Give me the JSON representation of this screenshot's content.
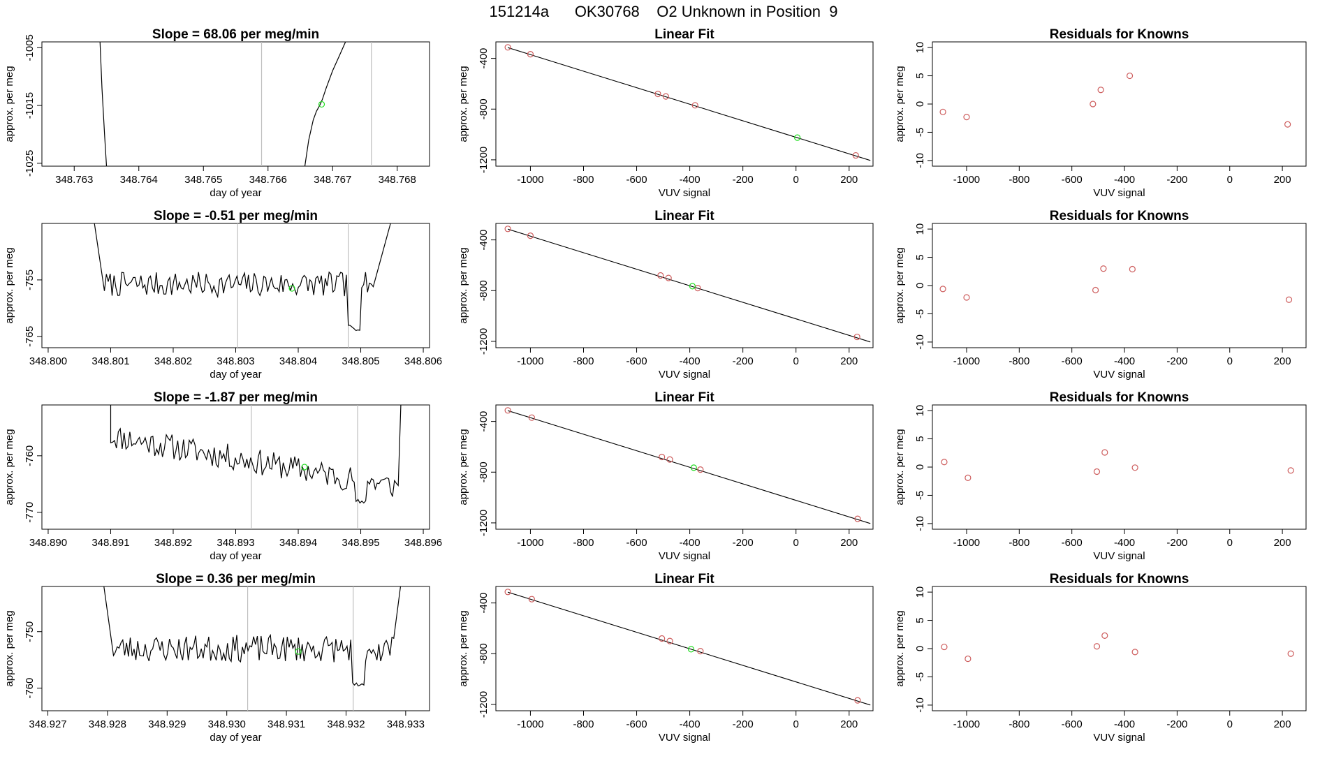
{
  "page_title": "151214a      OK30768    O2 Unknown in Position  9",
  "colors": {
    "known": "#cd5c5c",
    "unknown": "#22dd22",
    "line": "#000000",
    "vline": "#bfbfbf"
  },
  "chart_data": [
    {
      "id": "r1-trace",
      "type": "line",
      "title": "Slope =  68.06  per meg/min",
      "xlabel": "day of year",
      "ylabel": "approx. per meg",
      "xlim": [
        348.7625,
        348.7685
      ],
      "ylim": [
        -1025.5,
        -1004
      ],
      "xticks": [
        348.763,
        348.764,
        348.765,
        348.766,
        348.767,
        348.768
      ],
      "xtick_labels": [
        "348.763",
        "348.764",
        "348.765",
        "348.766",
        "348.767",
        "348.768"
      ],
      "yticks": [
        -1005,
        -1015,
        -1025
      ],
      "ytick_labels": [
        "-1005",
        "-1015",
        "-1025"
      ],
      "vlines": [
        348.7659,
        348.7676
      ],
      "segments": [
        [
          [
            348.7634,
            -1004
          ],
          [
            348.76343,
            -1012
          ],
          [
            348.76347,
            -1020
          ],
          [
            348.7635,
            -1025.5
          ]
        ],
        [
          [
            348.76657,
            -1025.5
          ],
          [
            348.76663,
            -1021
          ],
          [
            348.7667,
            -1017.5
          ],
          [
            348.76675,
            -1016
          ],
          [
            348.7668,
            -1015
          ],
          [
            348.76684,
            -1014
          ],
          [
            348.7669,
            -1012
          ],
          [
            348.767,
            -1009
          ],
          [
            348.7671,
            -1006.5
          ],
          [
            348.7672,
            -1004
          ]
        ]
      ],
      "unknown_point": [
        348.76683,
        -1014.8
      ]
    },
    {
      "id": "r1-fit",
      "type": "scatter",
      "title": "Linear Fit",
      "xlabel": "VUV signal",
      "ylabel": "approx. per meg",
      "xlim": [
        -1130,
        290
      ],
      "ylim": [
        -1250,
        -270
      ],
      "xticks": [
        -1000,
        -800,
        -600,
        -400,
        -200,
        0,
        200
      ],
      "xtick_labels": [
        "-1000",
        "-800",
        "-600",
        "-400",
        "-200",
        "0",
        "200"
      ],
      "yticks": [
        -400,
        -800,
        -1200
      ],
      "ytick_labels": [
        "-400",
        "-800",
        "-1200"
      ],
      "fit_line": [
        [
          -1085,
          -315
        ],
        [
          280,
          -1205
        ]
      ],
      "knowns": [
        [
          -1085,
          -313
        ],
        [
          -1000,
          -367
        ],
        [
          -520,
          -680
        ],
        [
          -490,
          -700
        ],
        [
          -380,
          -770
        ],
        [
          225,
          -1165
        ]
      ],
      "unknowns": [
        [
          5,
          -1025
        ]
      ]
    },
    {
      "id": "r1-resid",
      "type": "scatter",
      "title": "Residuals for Knowns",
      "xlabel": "VUV signal",
      "ylabel": "approx. per meg",
      "xlim": [
        -1130,
        290
      ],
      "ylim": [
        -11,
        11
      ],
      "xticks": [
        -1000,
        -800,
        -600,
        -400,
        -200,
        0,
        200
      ],
      "xtick_labels": [
        "-1000",
        "-800",
        "-600",
        "-400",
        "-200",
        "0",
        "200"
      ],
      "yticks": [
        10,
        5,
        0,
        -5,
        -10
      ],
      "ytick_labels": [
        "10",
        "5",
        "0",
        "-5",
        "-10"
      ],
      "knowns": [
        [
          -1090,
          -1.4
        ],
        [
          -1000,
          -2.3
        ],
        [
          -520,
          0
        ],
        [
          -490,
          2.5
        ],
        [
          -380,
          5.0
        ],
        [
          220,
          -3.6
        ]
      ]
    },
    {
      "id": "r2-trace",
      "type": "line",
      "title": "Slope =  -0.51  per meg/min",
      "xlabel": "day of year",
      "ylabel": "approx. per meg",
      "xlim": [
        348.7999,
        348.8061
      ],
      "ylim": [
        -767,
        -745
      ],
      "xticks": [
        348.8,
        348.801,
        348.802,
        348.803,
        348.804,
        348.805,
        348.806
      ],
      "xtick_labels": [
        "348.800",
        "348.801",
        "348.802",
        "348.803",
        "348.804",
        "348.805",
        "348.806"
      ],
      "yticks": [
        -755,
        -765
      ],
      "ytick_labels": [
        "-755",
        "-765"
      ],
      "vlines": [
        348.80303,
        348.8048
      ],
      "noise": {
        "x0": 348.8009,
        "x1": 348.8052,
        "n": 140,
        "mean": -755.8,
        "amp": 2.2,
        "seed": 7,
        "lead_x": 348.8007,
        "trail_x": 348.80555,
        "dip": [
          348.8048,
          348.805,
          -763.5
        ]
      },
      "unknown_point": [
        348.8039,
        -756.5
      ]
    },
    {
      "id": "r2-fit",
      "type": "scatter",
      "title": "Linear Fit",
      "xlabel": "VUV signal",
      "ylabel": "approx. per meg",
      "xlim": [
        -1130,
        290
      ],
      "ylim": [
        -1250,
        -270
      ],
      "xticks": [
        -1000,
        -800,
        -600,
        -400,
        -200,
        0,
        200
      ],
      "xtick_labels": [
        "-1000",
        "-800",
        "-600",
        "-400",
        "-200",
        "0",
        "200"
      ],
      "yticks": [
        -400,
        -800,
        -1200
      ],
      "ytick_labels": [
        "-400",
        "-800",
        "-1200"
      ],
      "fit_line": [
        [
          -1085,
          -315
        ],
        [
          280,
          -1205
        ]
      ],
      "knowns": [
        [
          -1085,
          -313
        ],
        [
          -1000,
          -367
        ],
        [
          -510,
          -680
        ],
        [
          -480,
          -700
        ],
        [
          -370,
          -780
        ],
        [
          230,
          -1165
        ]
      ],
      "unknowns": [
        [
          -390,
          -765
        ]
      ]
    },
    {
      "id": "r2-resid",
      "type": "scatter",
      "title": "Residuals for Knowns",
      "xlabel": "VUV signal",
      "ylabel": "approx. per meg",
      "xlim": [
        -1130,
        290
      ],
      "ylim": [
        -11,
        11
      ],
      "xticks": [
        -1000,
        -800,
        -600,
        -400,
        -200,
        0,
        200
      ],
      "xtick_labels": [
        "-1000",
        "-800",
        "-600",
        "-400",
        "-200",
        "0",
        "200"
      ],
      "yticks": [
        10,
        5,
        0,
        -5,
        -10
      ],
      "ytick_labels": [
        "10",
        "5",
        "0",
        "-5",
        "-10"
      ],
      "knowns": [
        [
          -1090,
          -0.6
        ],
        [
          -1000,
          -2.1
        ],
        [
          -510,
          -0.8
        ],
        [
          -480,
          3.0
        ],
        [
          -370,
          2.9
        ],
        [
          225,
          -2.5
        ]
      ]
    },
    {
      "id": "r3-trace",
      "type": "line",
      "title": "Slope =  -1.87  per meg/min",
      "xlabel": "day of year",
      "ylabel": "approx. per meg",
      "xlim": [
        348.8899,
        348.8961
      ],
      "ylim": [
        -773,
        -751
      ],
      "xticks": [
        348.89,
        348.891,
        348.892,
        348.893,
        348.894,
        348.895,
        348.896
      ],
      "xtick_labels": [
        "348.890",
        "348.891",
        "348.892",
        "348.893",
        "348.894",
        "348.895",
        "348.896"
      ],
      "yticks": [
        -760,
        -770
      ],
      "ytick_labels": [
        "-760",
        "-770"
      ],
      "vlines": [
        348.89325,
        348.89495
      ],
      "noise": {
        "x0": 348.891,
        "x1": 348.8956,
        "n": 150,
        "mean_start": -756.5,
        "mean_end": -765.5,
        "amp": 2.3,
        "seed": 11,
        "lead_x": 348.891,
        "trail_x": 348.89565,
        "dip": [
          348.8949,
          348.8951,
          -768
        ]
      },
      "unknown_point": [
        348.8941,
        -762
      ]
    },
    {
      "id": "r3-fit",
      "type": "scatter",
      "title": "Linear Fit",
      "xlabel": "VUV signal",
      "ylabel": "approx. per meg",
      "xlim": [
        -1130,
        290
      ],
      "ylim": [
        -1250,
        -270
      ],
      "xticks": [
        -1000,
        -800,
        -600,
        -400,
        -200,
        0,
        200
      ],
      "xtick_labels": [
        "-1000",
        "-800",
        "-600",
        "-400",
        "-200",
        "0",
        "200"
      ],
      "yticks": [
        -400,
        -800,
        -1200
      ],
      "ytick_labels": [
        "-400",
        "-800",
        "-1200"
      ],
      "fit_line": [
        [
          -1085,
          -315
        ],
        [
          280,
          -1205
        ]
      ],
      "knowns": [
        [
          -1085,
          -313
        ],
        [
          -995,
          -370
        ],
        [
          -505,
          -680
        ],
        [
          -475,
          -700
        ],
        [
          -360,
          -780
        ],
        [
          232,
          -1168
        ]
      ],
      "unknowns": [
        [
          -385,
          -765
        ]
      ]
    },
    {
      "id": "r3-resid",
      "type": "scatter",
      "title": "Residuals for Knowns",
      "xlabel": "VUV signal",
      "ylabel": "approx. per meg",
      "xlim": [
        -1130,
        290
      ],
      "ylim": [
        -11,
        11
      ],
      "xticks": [
        -1000,
        -800,
        -600,
        -400,
        -200,
        0,
        200
      ],
      "xtick_labels": [
        "-1000",
        "-800",
        "-600",
        "-400",
        "-200",
        "0",
        "200"
      ],
      "yticks": [
        10,
        5,
        0,
        -5,
        -10
      ],
      "ytick_labels": [
        "10",
        "5",
        "0",
        "-5",
        "-10"
      ],
      "knowns": [
        [
          -1085,
          0.9
        ],
        [
          -995,
          -1.9
        ],
        [
          -505,
          -0.8
        ],
        [
          -475,
          2.6
        ],
        [
          -360,
          -0.1
        ],
        [
          232,
          -0.6
        ]
      ]
    },
    {
      "id": "r4-trace",
      "type": "line",
      "title": "Slope =  0.36  per meg/min",
      "xlabel": "day of year",
      "ylabel": "approx. per meg",
      "xlim": [
        348.9269,
        348.9334
      ],
      "ylim": [
        -764,
        -742
      ],
      "xticks": [
        348.927,
        348.928,
        348.929,
        348.93,
        348.931,
        348.932,
        348.933
      ],
      "xtick_labels": [
        "348.927",
        "348.928",
        "348.929",
        "348.930",
        "348.931",
        "348.932",
        "348.933"
      ],
      "yticks": [
        -750,
        -760
      ],
      "ytick_labels": [
        "-750",
        "-760"
      ],
      "vlines": [
        348.93035,
        348.93212
      ],
      "noise": {
        "x0": 348.9281,
        "x1": 348.9328,
        "n": 150,
        "mean": -753,
        "amp": 2.4,
        "seed": 23,
        "lead_x": 348.9279,
        "trail_x": 348.93295,
        "dip": [
          348.9321,
          348.9323,
          -759.5
        ]
      },
      "unknown_point": [
        348.9312,
        -753.5
      ]
    },
    {
      "id": "r4-fit",
      "type": "scatter",
      "title": "Linear Fit",
      "xlabel": "VUV signal",
      "ylabel": "approx. per meg",
      "xlim": [
        -1130,
        290
      ],
      "ylim": [
        -1250,
        -270
      ],
      "xticks": [
        -1000,
        -800,
        -600,
        -400,
        -200,
        0,
        200
      ],
      "xtick_labels": [
        "-1000",
        "-800",
        "-600",
        "-400",
        "-200",
        "0",
        "200"
      ],
      "yticks": [
        -400,
        -800,
        -1200
      ],
      "ytick_labels": [
        "-400",
        "-800",
        "-1200"
      ],
      "fit_line": [
        [
          -1085,
          -315
        ],
        [
          280,
          -1205
        ]
      ],
      "knowns": [
        [
          -1085,
          -313
        ],
        [
          -995,
          -370
        ],
        [
          -505,
          -680
        ],
        [
          -475,
          -700
        ],
        [
          -360,
          -780
        ],
        [
          232,
          -1168
        ]
      ],
      "unknowns": [
        [
          -395,
          -765
        ]
      ]
    },
    {
      "id": "r4-resid",
      "type": "scatter",
      "title": "Residuals for Knowns",
      "xlabel": "VUV signal",
      "ylabel": "approx. per meg",
      "xlim": [
        -1130,
        290
      ],
      "ylim": [
        -11,
        11
      ],
      "xticks": [
        -1000,
        -800,
        -600,
        -400,
        -200,
        0,
        200
      ],
      "xtick_labels": [
        "-1000",
        "-800",
        "-600",
        "-400",
        "-200",
        "0",
        "200"
      ],
      "yticks": [
        10,
        5,
        0,
        -5,
        -10
      ],
      "ytick_labels": [
        "10",
        "5",
        "0",
        "-5",
        "-10"
      ],
      "knowns": [
        [
          -1085,
          0.3
        ],
        [
          -995,
          -1.8
        ],
        [
          -505,
          0.4
        ],
        [
          -475,
          2.3
        ],
        [
          -360,
          -0.6
        ],
        [
          232,
          -0.9
        ]
      ]
    }
  ]
}
